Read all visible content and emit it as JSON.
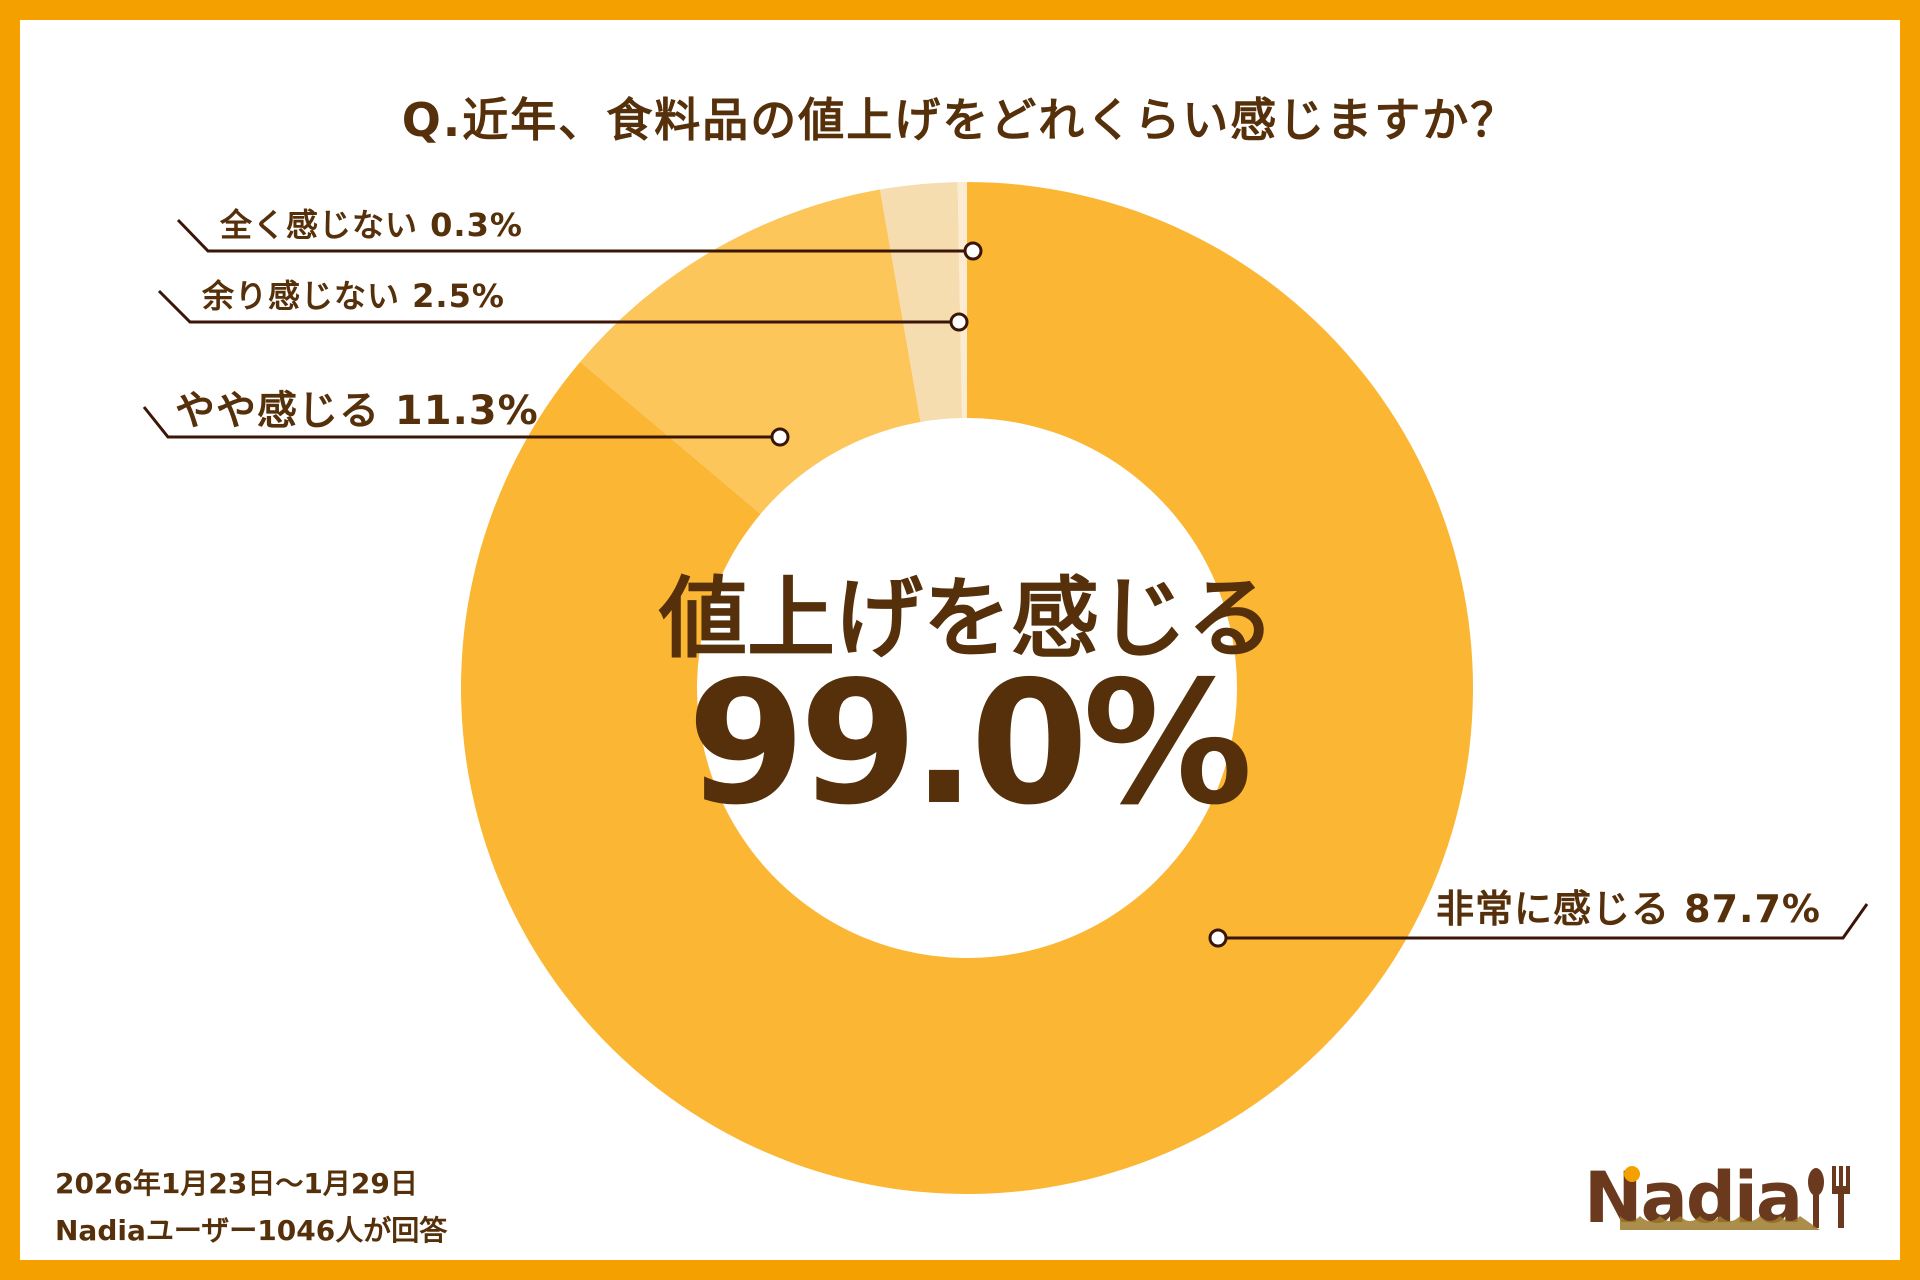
{
  "title": "Q.近年、食料品の値上げをどれくらい感じますか？",
  "chart_data": {
    "type": "pie",
    "style": "donut",
    "title": "Q.近年、食料品の値上げをどれくらい感じますか？",
    "categories": [
      "非常に感じる",
      "やや感じる",
      "余り感じない",
      "全く感じない"
    ],
    "values": [
      87.7,
      11.3,
      2.5,
      0.3
    ],
    "labels": [
      "非常に感じる 87.7%",
      "やや感じる 11.3%",
      "余り感じない 2.5%",
      "全く感じない 0.3%"
    ],
    "colors": [
      "#FBB634",
      "#FDC65A",
      "#F5DDB0",
      "#FBEBD0"
    ],
    "center_label": "値上げを感じる",
    "center_value": "99.0%"
  },
  "footer": {
    "period": "2026年1月23日〜1月29日",
    "respondents": "Nadiaユーザー1046人が回答"
  },
  "logo": "Nadia",
  "colors": {
    "border": "#F4A100",
    "text": "#55300A"
  }
}
